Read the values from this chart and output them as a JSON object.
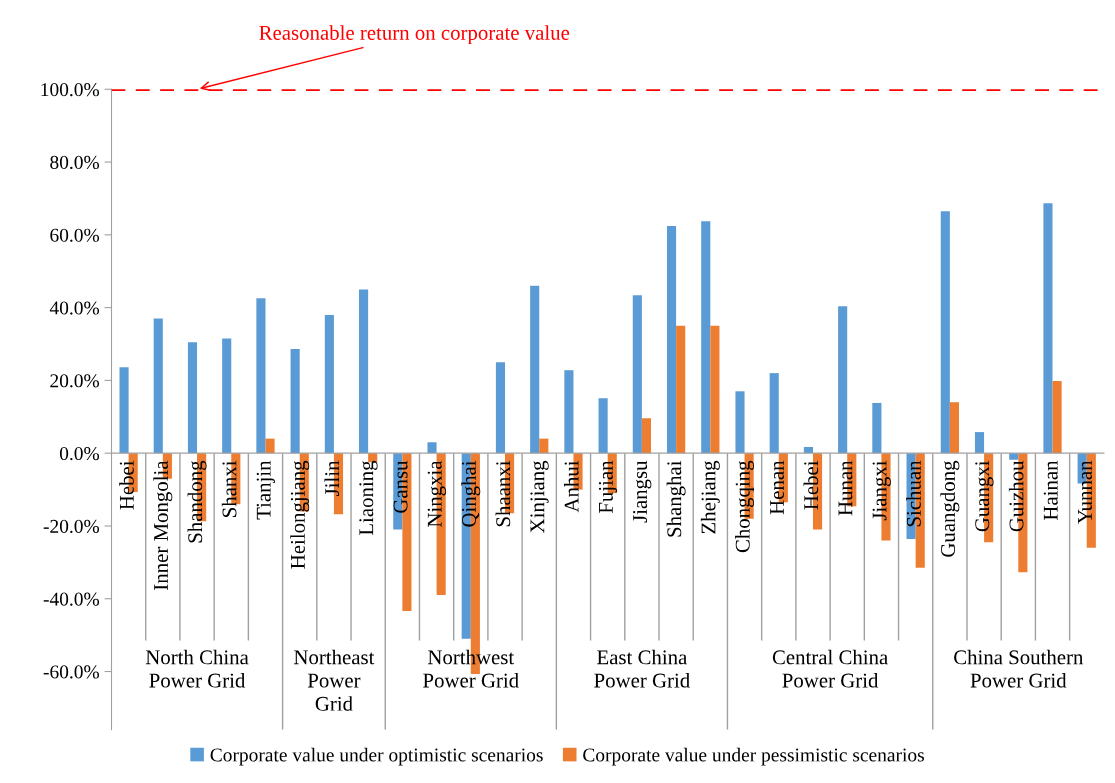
{
  "chart_data": {
    "type": "bar",
    "categories": [
      "Hebei",
      "Inner Mongolia",
      "Shandong",
      "Shanxi",
      "Tianjin",
      "Heilongjiang",
      "Jilin",
      "Liaoning",
      "Gansu",
      "Ningxia",
      "Qinghai",
      "Shaanxi",
      "Xinjiang",
      "Anhui",
      "Fujian",
      "Jiangsu",
      "Shanghai",
      "Zhejiang",
      "Chongqing",
      "Henan",
      "Hebei",
      "Hunan",
      "Jiangxi",
      "Sichuan",
      "Guangdong",
      "Guangxi",
      "Guizhou",
      "Hainan",
      "Yunnan"
    ],
    "series": [
      {
        "name": "Corporate value under optimistic scenarios",
        "color": "#5b9bd5",
        "values": [
          23.6,
          37,
          30.5,
          31.5,
          42.6,
          28.6,
          38,
          45,
          -21,
          3,
          -51,
          25,
          46,
          22.8,
          15.1,
          43.4,
          62.4,
          63.7,
          17,
          22,
          1.7,
          40.4,
          13.8,
          -23.6,
          66.5,
          5.8,
          -1.8,
          68.7,
          -8.3
        ]
      },
      {
        "name": "Corporate value under pessimistic scenarios",
        "color": "#ed7d31",
        "values": [
          -10.7,
          -7,
          -18.7,
          -14,
          4,
          -16,
          -16.8,
          -2.5,
          -43.4,
          -39,
          -60.7,
          -16.5,
          4,
          -10,
          -11,
          9.6,
          35,
          35,
          -18,
          -13.5,
          -21,
          -14.6,
          -24,
          -31.5,
          14,
          -24.5,
          -32.7,
          19.8,
          -26
        ]
      }
    ],
    "ylim": [
      -76,
      100
    ],
    "yticks": [
      {
        "value": -60,
        "label": "-60.0%"
      },
      {
        "value": -40,
        "label": "-40.0%"
      },
      {
        "value": -20,
        "label": "-20.0%"
      },
      {
        "value": 0,
        "label": "0.0%"
      },
      {
        "value": 20,
        "label": "20.0%"
      },
      {
        "value": 40,
        "label": "40.0%"
      },
      {
        "value": 60,
        "label": "60.0%"
      },
      {
        "value": 80,
        "label": "80.0%"
      },
      {
        "value": 100,
        "label": "100.0%"
      }
    ],
    "ref_lines": [
      {
        "axis": "y",
        "value": 100,
        "label": "Reasonable return on corporate value",
        "color": "#ff0000",
        "line_style": "dashed"
      }
    ],
    "annotations": [
      "North China\nPower Grid",
      "Northeast\nPower\nGrid",
      "Northwest\nPower Grid",
      "East China\nPower Grid",
      "Central China\nPower Grid",
      "China Southern\nPower Grid"
    ],
    "grid": false,
    "legend": "bottom"
  }
}
